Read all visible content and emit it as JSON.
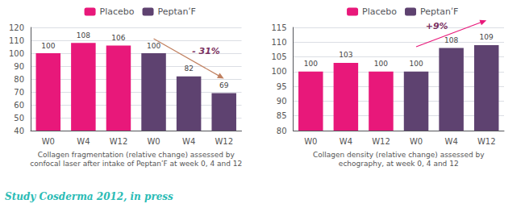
{
  "chart_data": [
    {
      "type": "bar",
      "categories": [
        "W0",
        "W4",
        "W12",
        "W0",
        "W4",
        "W12"
      ],
      "series": [
        {
          "name": "Placebo",
          "color": "#e8187a",
          "values": [
            100,
            108,
            106,
            null,
            null,
            null
          ]
        },
        {
          "name": "PeptanʹF",
          "color": "#5e4270",
          "values": [
            null,
            null,
            null,
            100,
            82,
            69
          ]
        }
      ],
      "ylim": [
        40,
        120
      ],
      "yticks": [
        40,
        50,
        60,
        70,
        80,
        90,
        100,
        110,
        120
      ],
      "grid": true,
      "data_labels": true,
      "legend": "top",
      "xlabel": "Collagen fragmentation (relative change) assessed by\nconfocal laser after intake of PeptanʹF at week 0, 4 and 12",
      "annotations": [
        {
          "text": "- 31%",
          "color": "#7a3060",
          "arrow_color": "#c08060"
        },
        {
          "text": "Study Cosderma 2012, in press",
          "color": "#2abbb5"
        }
      ]
    },
    {
      "type": "bar",
      "categories": [
        "W0",
        "W4",
        "W12",
        "W0",
        "W4",
        "W12"
      ],
      "series": [
        {
          "name": "Placebo",
          "color": "#e8187a",
          "values": [
            100,
            103,
            100,
            null,
            null,
            null
          ]
        },
        {
          "name": "PeptanʹF",
          "color": "#5e4270",
          "values": [
            null,
            null,
            null,
            100,
            108,
            109
          ]
        }
      ],
      "ylim": [
        80,
        115
      ],
      "yticks": [
        80,
        85,
        90,
        95,
        100,
        105,
        110,
        115
      ],
      "grid": true,
      "data_labels": true,
      "legend": "top",
      "xlabel": "Collagen density (relative change) assessed by\nechography, at week 0, 4 and 12",
      "annotations": [
        {
          "text": "+9%",
          "color": "#7a3060",
          "arrow_color": "#e8187a"
        }
      ]
    }
  ]
}
